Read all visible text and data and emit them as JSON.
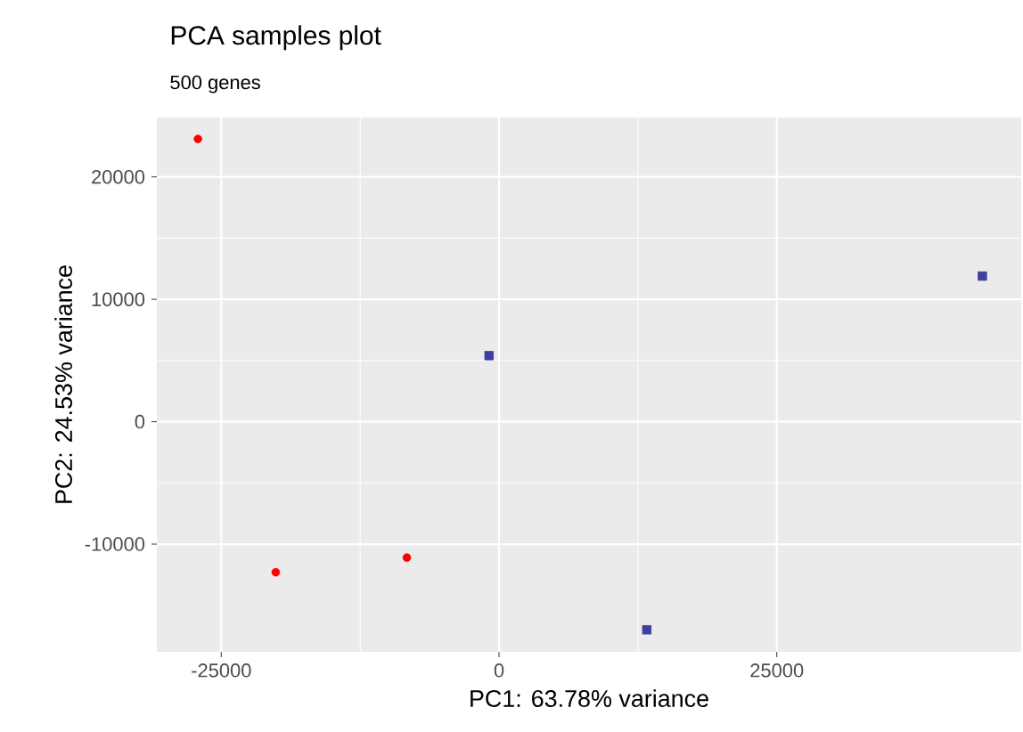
{
  "chart_data": {
    "type": "scatter",
    "title": "PCA samples plot",
    "subtitle": "500 genes",
    "xlabel": "PC1: 63.78% variance",
    "ylabel": "PC2: 24.53% variance",
    "xlim": [
      -30800,
      47000
    ],
    "ylim": [
      -18800,
      24850
    ],
    "xticks": [
      -25000,
      0,
      25000
    ],
    "yticks": [
      -10000,
      0,
      10000,
      20000
    ],
    "grid": true,
    "legend": false,
    "series": [
      {
        "color": "#ff0000",
        "marker": "circle",
        "x": [
          -27100,
          -20100,
          -8300
        ],
        "values": [
          23100,
          -12300,
          -11100
        ]
      },
      {
        "color": "#3f3f9f",
        "marker": "square",
        "x": [
          -900,
          43500,
          13300
        ],
        "values": [
          5400,
          11900,
          -17000
        ]
      }
    ]
  }
}
